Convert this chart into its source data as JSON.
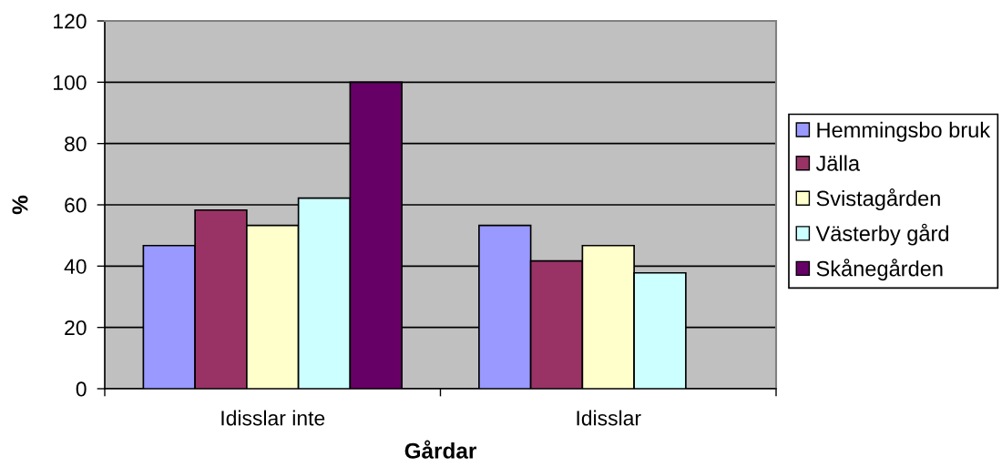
{
  "chart_data": {
    "type": "bar",
    "categories": [
      "Idisslar inte",
      "Idisslar"
    ],
    "series": [
      {
        "name": "Hemmingsbo bruk",
        "color": "#9999ff",
        "values": [
          46.7,
          53.3
        ]
      },
      {
        "name": "Jälla",
        "color": "#993366",
        "values": [
          58.3,
          41.7
        ]
      },
      {
        "name": "Svistagården",
        "color": "#ffffcc",
        "values": [
          53.3,
          46.7
        ]
      },
      {
        "name": "Västerby gård",
        "color": "#ccffff",
        "values": [
          62.2,
          37.8
        ]
      },
      {
        "name": "Skånegården",
        "color": "#660066",
        "values": [
          100,
          null
        ]
      }
    ],
    "xlabel": "Gårdar",
    "ylabel": "%",
    "ylim": [
      0,
      120
    ],
    "yticks": [
      0,
      20,
      40,
      60,
      80,
      100,
      120
    ],
    "grid": "y",
    "legend": "right"
  }
}
